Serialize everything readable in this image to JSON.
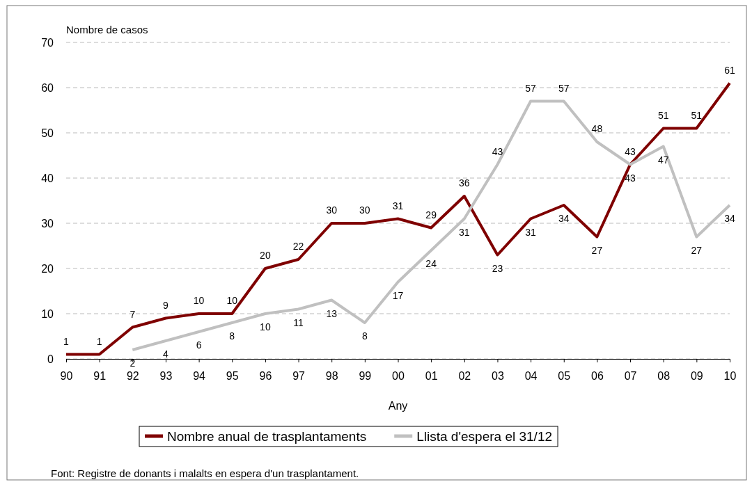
{
  "chart_data": {
    "type": "line",
    "ylabel": "Nombre de casos",
    "xlabel": "Any",
    "categories": [
      "90",
      "91",
      "92",
      "93",
      "94",
      "95",
      "96",
      "97",
      "98",
      "99",
      "00",
      "01",
      "02",
      "03",
      "04",
      "05",
      "06",
      "07",
      "08",
      "09",
      "10"
    ],
    "series": [
      {
        "name": "Nombre anual de trasplantaments",
        "color": "#7f0000",
        "values": [
          1,
          1,
          7,
          9,
          10,
          10,
          20,
          22,
          30,
          30,
          31,
          29,
          36,
          23,
          31,
          34,
          27,
          43,
          51,
          51,
          61
        ]
      },
      {
        "name": "Llista d'espera el 31/12",
        "color": "#c0c0c0",
        "values": [
          null,
          null,
          2,
          4,
          6,
          8,
          10,
          11,
          13,
          8,
          17,
          24,
          31,
          43,
          57,
          57,
          48,
          43,
          47,
          27,
          34
        ]
      }
    ],
    "ylim": [
      0,
      70
    ],
    "yticks": [
      0,
      10,
      20,
      30,
      40,
      50,
      60,
      70
    ],
    "grid": "y",
    "legend": "bottom",
    "marker": "none",
    "line_style": "solid",
    "data_labels": true,
    "annotations": [
      "Font: Registre de donants i malalts en espera d'un trasplantament."
    ]
  }
}
